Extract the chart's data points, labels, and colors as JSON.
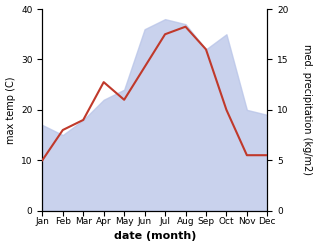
{
  "months": [
    "Jan",
    "Feb",
    "Mar",
    "Apr",
    "May",
    "Jun",
    "Jul",
    "Aug",
    "Sep",
    "Oct",
    "Nov",
    "Dec"
  ],
  "temperature": [
    10.0,
    16.0,
    18.0,
    25.5,
    22.0,
    28.5,
    35.0,
    36.5,
    32.0,
    20.0,
    11.0,
    11.0
  ],
  "precipitation": [
    8.5,
    7.5,
    9.0,
    11.0,
    12.0,
    18.0,
    19.0,
    18.5,
    16.0,
    17.5,
    10.0,
    9.5
  ],
  "temp_color": "#c0392b",
  "precip_fill_color": "#b8c4e8",
  "precip_alpha": 0.75,
  "ylim_temp": [
    0,
    40
  ],
  "ylim_precip": [
    0,
    20
  ],
  "yticks_temp": [
    0,
    10,
    20,
    30,
    40
  ],
  "yticks_precip": [
    0,
    5,
    10,
    15,
    20
  ],
  "ylabel_left": "max temp (C)",
  "ylabel_right": "med. precipitation (kg/m2)",
  "xlabel": "date (month)",
  "temp_linewidth": 1.5,
  "xlabel_fontsize": 8,
  "ylabel_fontsize": 7,
  "tick_fontsize": 6.5
}
